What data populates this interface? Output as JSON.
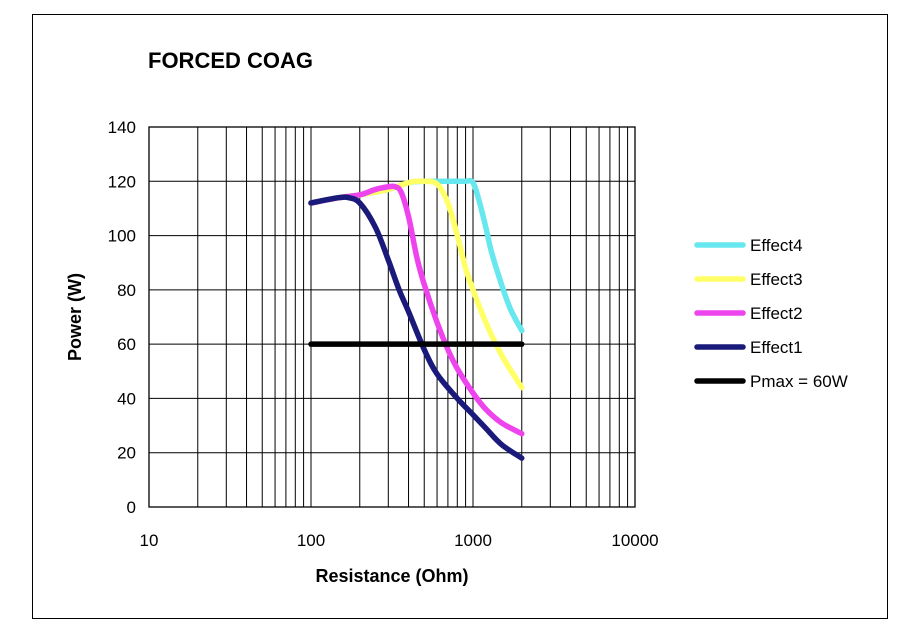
{
  "chart_data": {
    "type": "line",
    "title": "FORCED COAG",
    "xlabel": "Resistance (Ohm)",
    "ylabel": "Power (W)",
    "xscale": "log",
    "xlim": [
      10,
      10000
    ],
    "ylim": [
      0,
      140
    ],
    "grid": true,
    "legend_position": "right",
    "xticks": [
      "10",
      "100",
      "1000",
      "10000"
    ],
    "yticks": [
      "0",
      "20",
      "40",
      "60",
      "80",
      "100",
      "120",
      "140"
    ],
    "series": [
      {
        "name": "Effect4",
        "color": "#66E8EE",
        "x": [
          100,
          150,
          200,
          300,
          400,
          500,
          600,
          700,
          800,
          900,
          1000,
          1100,
          1200,
          1300,
          1500,
          1700,
          2000
        ],
        "y": [
          112,
          114,
          115,
          117,
          119.5,
          120,
          120,
          120,
          120,
          120,
          119.5,
          112,
          103,
          94,
          82,
          73,
          65
        ]
      },
      {
        "name": "Effect3",
        "color": "#FFFF66",
        "x": [
          100,
          150,
          200,
          300,
          400,
          450,
          500,
          600,
          700,
          800,
          900,
          1000,
          1200,
          1500,
          2000
        ],
        "y": [
          112,
          114,
          115,
          117,
          119.5,
          120,
          120,
          119,
          112,
          100,
          88,
          80,
          68,
          56,
          44
        ]
      },
      {
        "name": "Effect2",
        "color": "#EE44EE",
        "x": [
          100,
          150,
          200,
          250,
          300,
          330,
          360,
          400,
          450,
          500,
          600,
          700,
          800,
          1000,
          1200,
          1500,
          2000
        ],
        "y": [
          112,
          114,
          115,
          117,
          118,
          118,
          116,
          107,
          92,
          82,
          68,
          58,
          51,
          42,
          36,
          31,
          27
        ]
      },
      {
        "name": "Effect1",
        "color": "#1A1A7A",
        "x": [
          100,
          120,
          150,
          170,
          200,
          250,
          300,
          350,
          400,
          500,
          600,
          800,
          1000,
          1200,
          1500,
          2000
        ],
        "y": [
          112,
          113,
          114,
          114,
          112,
          103,
          91,
          80,
          72,
          58,
          49,
          40,
          34,
          29,
          23,
          18
        ]
      },
      {
        "name": "Pmax = 60W",
        "color": "#000000",
        "x": [
          100,
          2000
        ],
        "y": [
          60,
          60
        ]
      }
    ]
  }
}
